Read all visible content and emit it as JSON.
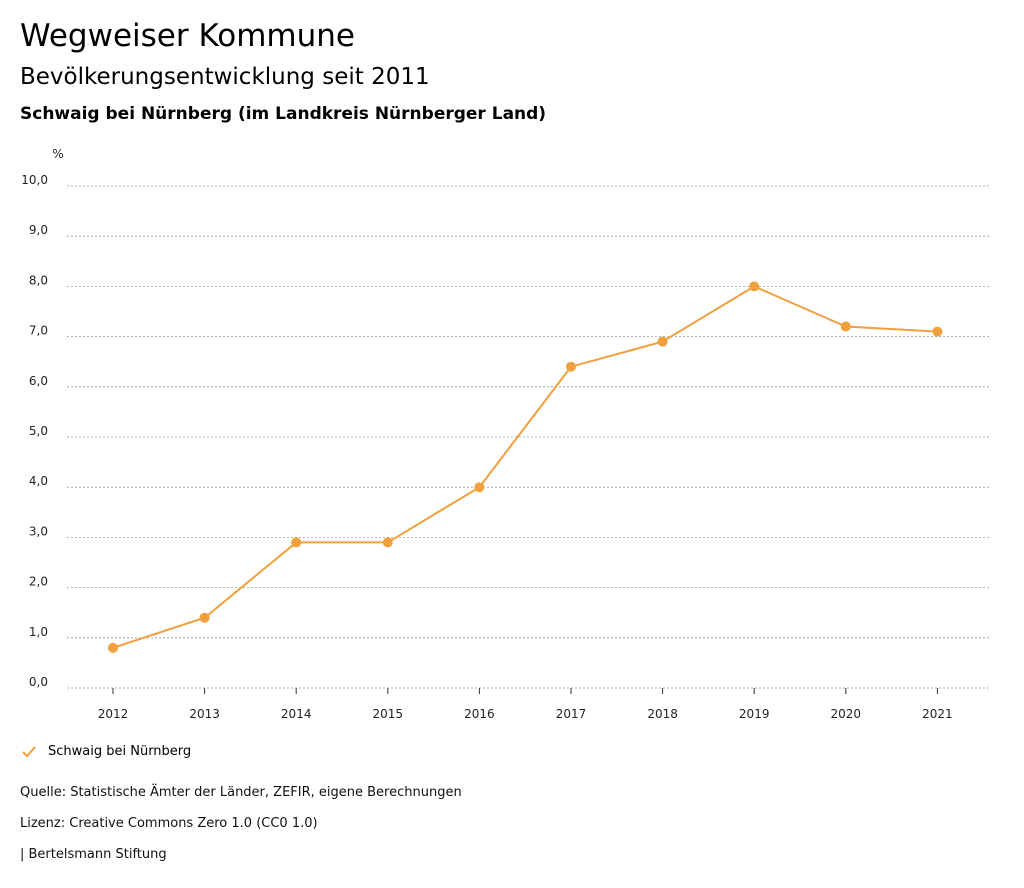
{
  "header": {
    "title": "Wegweiser Kommune",
    "subtitle": "Bevölkerungsentwicklung seit 2011",
    "region": "Schwaig bei Nürnberg (im Landkreis Nürnberger Land)"
  },
  "chart_data": {
    "type": "line",
    "ylabel": "%",
    "ylim": [
      0,
      10
    ],
    "ytick_labels": [
      "0,0",
      "1,0",
      "2,0",
      "3,0",
      "4,0",
      "5,0",
      "6,0",
      "7,0",
      "8,0",
      "9,0",
      "10,0"
    ],
    "categories": [
      "2012",
      "2013",
      "2014",
      "2015",
      "2016",
      "2017",
      "2018",
      "2019",
      "2020",
      "2021"
    ],
    "series": [
      {
        "name": "Schwaig bei Nürnberg",
        "values": [
          0.8,
          1.4,
          2.9,
          2.9,
          4.0,
          6.4,
          6.9,
          8.0,
          7.2,
          7.1
        ]
      }
    ],
    "grid": true,
    "legend": "bottom-left"
  },
  "colors": {
    "series": "#f0a03c",
    "grid": "#999999",
    "axis": "#333333"
  },
  "legend": {
    "label": "Schwaig bei Nürnberg",
    "icon": "check-icon"
  },
  "footer": {
    "source": "Quelle: Statistische Ämter der Länder, ZEFIR, eigene Berechnungen",
    "license": "Lizenz: Creative Commons Zero 1.0 (CC0 1.0)",
    "publisher": "| Bertelsmann Stiftung"
  }
}
